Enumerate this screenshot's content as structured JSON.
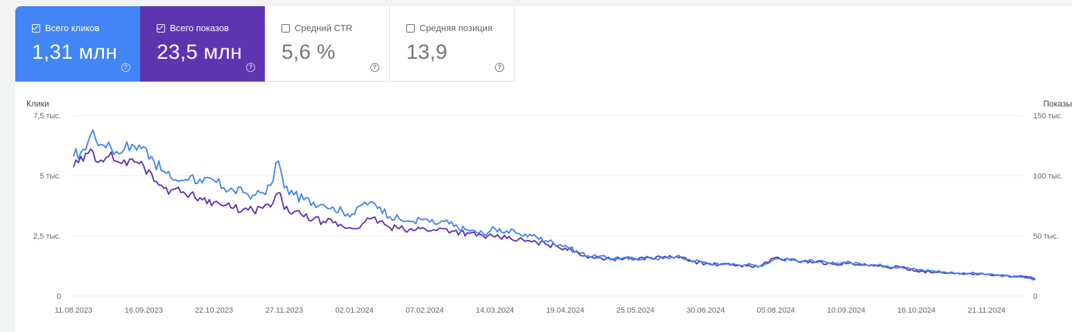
{
  "metrics": [
    {
      "label": "Всего кликов",
      "value": "1,31 млн",
      "checked": true,
      "color": "#4285f4",
      "help_icon": "help-circle-icon"
    },
    {
      "label": "Всего показов",
      "value": "23,5 млн",
      "checked": true,
      "color": "#5e35b1",
      "help_icon": "help-circle-icon"
    },
    {
      "label": "Средний CTR",
      "value": "5,6 %",
      "checked": false,
      "color": "#ffffff",
      "help_icon": "help-circle-icon"
    },
    {
      "label": "Средняя позиция",
      "value": "13,9",
      "checked": false,
      "color": "#ffffff",
      "help_icon": "help-circle-icon"
    }
  ],
  "chart_data": {
    "type": "line",
    "left_axis_title": "Клики",
    "right_axis_title": "Показы",
    "left_ticks": [
      "7,5 тыс.",
      "5 тыс.",
      "2,5 тыс.",
      "0"
    ],
    "right_ticks": [
      "150 тыс.",
      "100 тыс.",
      "50 тыс.",
      "0"
    ],
    "x_tick_labels": [
      "11.08.2023",
      "16.09.2023",
      "22.10.2023",
      "27.11.2023",
      "02.01.2024",
      "07.02.2024",
      "14.03.2024",
      "19.04.2024",
      "25.05.2024",
      "30.06.2024",
      "05.08.2024",
      "10.09.2024",
      "16.10.2024",
      "21.11.2024"
    ],
    "grid": true,
    "series": [
      {
        "name": "Всего кликов",
        "color": "#4285f4",
        "axis": "left",
        "points": [
          [
            "11.08.2023",
            5800
          ],
          [
            "16.08.2023",
            6100
          ],
          [
            "21.08.2023",
            6900
          ],
          [
            "25.08.2023",
            6300
          ],
          [
            "29.08.2023",
            6400
          ],
          [
            "02.09.2023",
            6000
          ],
          [
            "06.09.2023",
            6100
          ],
          [
            "10.09.2023",
            6300
          ],
          [
            "16.09.2023",
            6200
          ],
          [
            "20.09.2023",
            5800
          ],
          [
            "25.09.2023",
            5200
          ],
          [
            "30.09.2023",
            4900
          ],
          [
            "05.10.2023",
            4800
          ],
          [
            "10.10.2023",
            5000
          ],
          [
            "16.10.2023",
            4700
          ],
          [
            "22.10.2023",
            4800
          ],
          [
            "27.10.2023",
            4500
          ],
          [
            "01.11.2023",
            4400
          ],
          [
            "06.11.2023",
            4300
          ],
          [
            "11.11.2023",
            4200
          ],
          [
            "16.11.2023",
            4300
          ],
          [
            "20.11.2023",
            4600
          ],
          [
            "24.11.2023",
            5600
          ],
          [
            "27.11.2023",
            4500
          ],
          [
            "02.12.2023",
            4200
          ],
          [
            "07.12.2023",
            4000
          ],
          [
            "12.12.2023",
            3900
          ],
          [
            "17.12.2023",
            3800
          ],
          [
            "22.12.2023",
            3700
          ],
          [
            "27.12.2023",
            3500
          ],
          [
            "02.01.2024",
            3400
          ],
          [
            "06.01.2024",
            3800
          ],
          [
            "10.01.2024",
            3900
          ],
          [
            "15.01.2024",
            3700
          ],
          [
            "20.01.2024",
            3300
          ],
          [
            "25.01.2024",
            3200
          ],
          [
            "30.01.2024",
            3100
          ],
          [
            "07.02.2024",
            3200
          ],
          [
            "12.02.2024",
            3000
          ],
          [
            "17.02.2024",
            3100
          ],
          [
            "22.02.2024",
            2900
          ],
          [
            "01.03.2024",
            2700
          ],
          [
            "08.03.2024",
            2600
          ],
          [
            "14.03.2024",
            2800
          ],
          [
            "20.03.2024",
            2700
          ],
          [
            "26.03.2024",
            2600
          ],
          [
            "02.04.2024",
            2500
          ],
          [
            "09.04.2024",
            2300
          ],
          [
            "19.04.2024",
            2100
          ],
          [
            "26.04.2024",
            1800
          ],
          [
            "03.05.2024",
            1650
          ],
          [
            "10.05.2024",
            1600
          ],
          [
            "17.05.2024",
            1550
          ],
          [
            "25.05.2024",
            1550
          ],
          [
            "01.06.2024",
            1600
          ],
          [
            "08.06.2024",
            1550
          ],
          [
            "15.06.2024",
            1650
          ],
          [
            "22.06.2024",
            1500
          ],
          [
            "30.06.2024",
            1400
          ],
          [
            "07.07.2024",
            1300
          ],
          [
            "14.07.2024",
            1350
          ],
          [
            "21.07.2024",
            1300
          ],
          [
            "28.07.2024",
            1250
          ],
          [
            "05.08.2024",
            1550
          ],
          [
            "12.08.2024",
            1500
          ],
          [
            "19.08.2024",
            1450
          ],
          [
            "26.08.2024",
            1450
          ],
          [
            "02.09.2024",
            1350
          ],
          [
            "10.09.2024",
            1400
          ],
          [
            "17.09.2024",
            1350
          ],
          [
            "24.09.2024",
            1300
          ],
          [
            "01.10.2024",
            1250
          ],
          [
            "08.10.2024",
            1200
          ],
          [
            "16.10.2024",
            1100
          ],
          [
            "23.10.2024",
            1050
          ],
          [
            "30.10.2024",
            1000
          ],
          [
            "06.11.2024",
            950
          ],
          [
            "13.11.2024",
            950
          ],
          [
            "21.11.2024",
            900
          ],
          [
            "28.11.2024",
            850
          ],
          [
            "05.12.2024",
            800
          ],
          [
            "12.12.2024",
            750
          ],
          [
            "16.12.2024",
            680
          ]
        ]
      },
      {
        "name": "Всего показов",
        "color": "#5e35b1",
        "axis": "right",
        "points": [
          [
            "11.08.2023",
            107000
          ],
          [
            "16.08.2023",
            112000
          ],
          [
            "21.08.2023",
            120000
          ],
          [
            "25.08.2023",
            113000
          ],
          [
            "29.08.2023",
            116000
          ],
          [
            "02.09.2023",
            112000
          ],
          [
            "06.09.2023",
            113000
          ],
          [
            "10.09.2023",
            114000
          ],
          [
            "16.09.2023",
            108000
          ],
          [
            "20.09.2023",
            102000
          ],
          [
            "25.09.2023",
            92000
          ],
          [
            "30.09.2023",
            88000
          ],
          [
            "05.10.2023",
            86000
          ],
          [
            "10.10.2023",
            85000
          ],
          [
            "16.10.2023",
            80000
          ],
          [
            "22.10.2023",
            78000
          ],
          [
            "27.10.2023",
            75000
          ],
          [
            "01.11.2023",
            73000
          ],
          [
            "06.11.2023",
            72000
          ],
          [
            "11.11.2023",
            71000
          ],
          [
            "16.11.2023",
            73000
          ],
          [
            "20.11.2023",
            74000
          ],
          [
            "24.11.2023",
            86000
          ],
          [
            "27.11.2023",
            72000
          ],
          [
            "02.12.2023",
            70000
          ],
          [
            "07.12.2023",
            66000
          ],
          [
            "12.12.2023",
            64000
          ],
          [
            "17.12.2023",
            62000
          ],
          [
            "22.12.2023",
            61000
          ],
          [
            "27.12.2023",
            58000
          ],
          [
            "02.01.2024",
            56000
          ],
          [
            "06.01.2024",
            60000
          ],
          [
            "10.01.2024",
            64000
          ],
          [
            "15.01.2024",
            62000
          ],
          [
            "20.01.2024",
            57000
          ],
          [
            "25.01.2024",
            56000
          ],
          [
            "30.01.2024",
            55000
          ],
          [
            "07.02.2024",
            56000
          ],
          [
            "12.02.2024",
            55000
          ],
          [
            "17.02.2024",
            56000
          ],
          [
            "22.02.2024",
            54000
          ],
          [
            "01.03.2024",
            52000
          ],
          [
            "08.03.2024",
            50000
          ],
          [
            "14.03.2024",
            49000
          ],
          [
            "20.03.2024",
            48000
          ],
          [
            "26.03.2024",
            47000
          ],
          [
            "02.04.2024",
            45000
          ],
          [
            "09.04.2024",
            43000
          ],
          [
            "19.04.2024",
            40000
          ],
          [
            "26.04.2024",
            35000
          ],
          [
            "03.05.2024",
            32000
          ],
          [
            "10.05.2024",
            31000
          ],
          [
            "17.05.2024",
            31000
          ],
          [
            "25.05.2024",
            31000
          ],
          [
            "01.06.2024",
            32000
          ],
          [
            "08.06.2024",
            32000
          ],
          [
            "15.06.2024",
            33000
          ],
          [
            "22.06.2024",
            29000
          ],
          [
            "30.06.2024",
            27000
          ],
          [
            "07.07.2024",
            26000
          ],
          [
            "14.07.2024",
            26000
          ],
          [
            "21.07.2024",
            25000
          ],
          [
            "28.07.2024",
            25000
          ],
          [
            "05.08.2024",
            32000
          ],
          [
            "12.08.2024",
            30000
          ],
          [
            "19.08.2024",
            29000
          ],
          [
            "26.08.2024",
            28000
          ],
          [
            "02.09.2024",
            27000
          ],
          [
            "10.09.2024",
            27000
          ],
          [
            "17.09.2024",
            26000
          ],
          [
            "24.09.2024",
            25000
          ],
          [
            "01.10.2024",
            24000
          ],
          [
            "08.10.2024",
            24000
          ],
          [
            "16.10.2024",
            21000
          ],
          [
            "23.10.2024",
            20000
          ],
          [
            "30.10.2024",
            19000
          ],
          [
            "06.11.2024",
            19000
          ],
          [
            "13.11.2024",
            18500
          ],
          [
            "21.11.2024",
            18000
          ],
          [
            "28.11.2024",
            17000
          ],
          [
            "05.12.2024",
            16500
          ],
          [
            "12.12.2024",
            16000
          ],
          [
            "16.12.2024",
            14000
          ]
        ]
      }
    ],
    "left_max": 7500,
    "right_max": 150000
  }
}
